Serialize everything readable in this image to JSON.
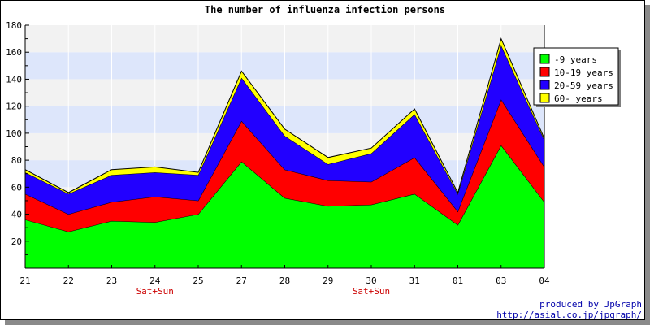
{
  "chart_data": {
    "type": "area",
    "stacked": true,
    "title": "The number of influenza infection persons",
    "xlabel": "",
    "ylabel": "",
    "categories": [
      "21",
      "22",
      "23",
      "24",
      "25",
      "27",
      "28",
      "29",
      "30",
      "31",
      "01",
      "03",
      "04"
    ],
    "category_notes": [
      "",
      "",
      "",
      "Sat+Sun",
      "",
      "",
      "",
      "",
      "Sat+Sun",
      "",
      "",
      "",
      ""
    ],
    "ylim": [
      0,
      180
    ],
    "yticks": [
      20,
      40,
      60,
      80,
      100,
      120,
      140,
      160,
      180
    ],
    "legend_position": "right",
    "series": [
      {
        "name": "-9 years",
        "color": "#00ff00",
        "values": [
          36,
          27,
          35,
          34,
          40,
          79,
          52,
          46,
          47,
          55,
          32,
          91,
          49
        ]
      },
      {
        "name": "10-19 years",
        "color": "#ff0000",
        "values": [
          19,
          13,
          14,
          19,
          10,
          30,
          21,
          19,
          17,
          27,
          10,
          34,
          26
        ]
      },
      {
        "name": "20-59 years",
        "color": "#2200ff",
        "values": [
          16,
          15,
          20,
          18,
          19,
          32,
          25,
          12,
          21,
          32,
          13,
          40,
          20
        ]
      },
      {
        "name": "60- years",
        "color": "#ffff00",
        "values": [
          2,
          1,
          4,
          4,
          2,
          5,
          5,
          5,
          4,
          4,
          1,
          5,
          1
        ]
      }
    ]
  },
  "credit": {
    "line1": "produced by JpGraph",
    "line2": "http://asial.co.jp/jpgraph/"
  }
}
